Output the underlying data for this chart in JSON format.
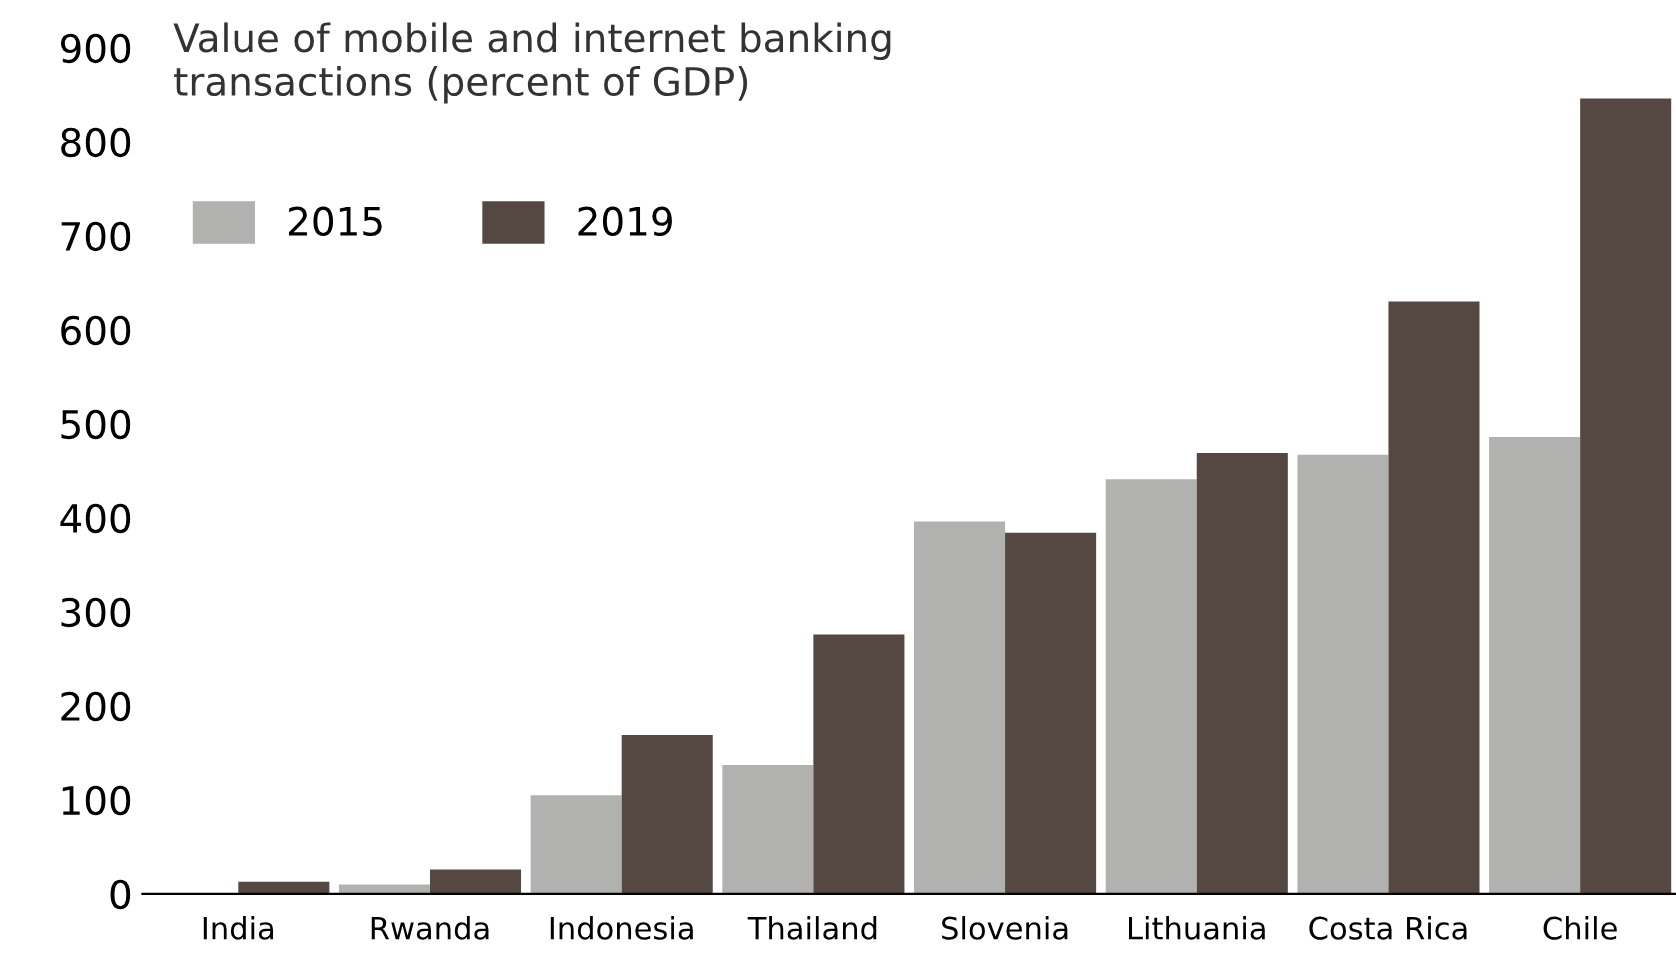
{
  "chart_data": {
    "type": "bar",
    "title": "Value of mobile and internet banking\ntransactions (percent of GDP)",
    "categories": [
      "India",
      "Rwanda",
      "Indonesia",
      "Thailand",
      "Slovenia",
      "Lithuania",
      "Costa Rica",
      "Chile"
    ],
    "series": [
      {
        "name": "2015",
        "color": "#b1b1b0",
        "values": [
          1,
          10,
          105,
          137,
          396,
          441,
          467,
          486
        ]
      },
      {
        "name": "2019",
        "color": "#554741",
        "values": [
          13,
          26,
          169,
          276,
          384,
          469,
          630,
          846
        ]
      }
    ],
    "ylim": [
      0,
      900
    ],
    "yticks": [
      0,
      100,
      200,
      300,
      400,
      500,
      600,
      700,
      800,
      900
    ],
    "grid": false,
    "legend": "top left"
  }
}
